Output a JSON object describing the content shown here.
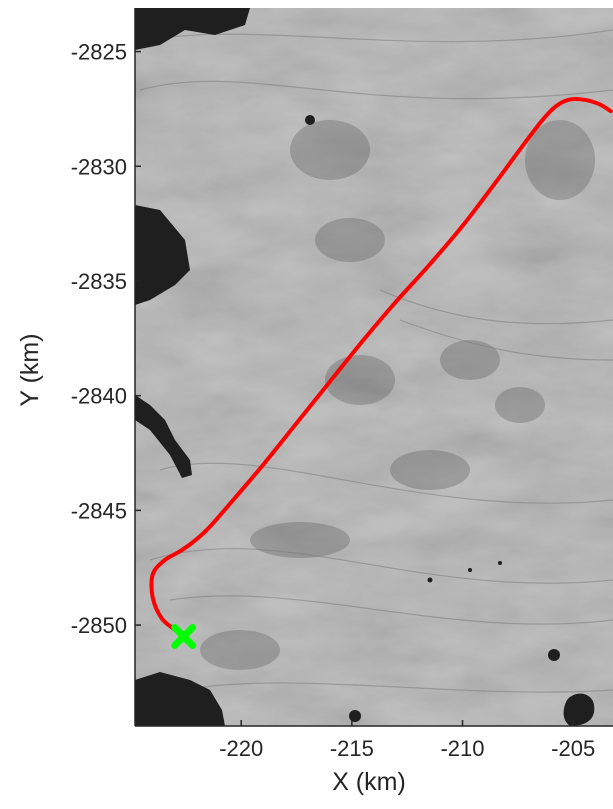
{
  "chart_data": {
    "type": "line",
    "title": "",
    "xlabel": "X (km)",
    "ylabel": "Y (km)",
    "xlim": [
      -224.8,
      -203.2
    ],
    "ylim": [
      -2854.4,
      -2823.1
    ],
    "x_ticks": [
      -220,
      -215,
      -210,
      -205
    ],
    "y_ticks": [
      -2825,
      -2830,
      -2835,
      -2840,
      -2845,
      -2850
    ],
    "x_tick_labels": [
      "-220",
      "-215",
      "-210",
      "-205"
    ],
    "y_tick_labels": [
      "-2825",
      "-2830",
      "-2835",
      "-2840",
      "-2845",
      "-2850"
    ],
    "grid": false,
    "background": "grayscale satellite imagery",
    "series": [
      {
        "color": "#ff0000",
        "x": [
          -203.3,
          -203.8,
          -204.5,
          -205.2,
          -205.8,
          -206.4,
          -207.2,
          -208.5,
          -210.0,
          -211.5,
          -213.0,
          -214.5,
          -216.0,
          -217.5,
          -219.0,
          -220.5,
          -221.5,
          -222.2,
          -222.8,
          -223.5,
          -224.0,
          -224.0,
          -223.6,
          -223.0,
          -222.6
        ],
        "y": [
          -2827.6,
          -2827.3,
          -2827.1,
          -2827.1,
          -2827.4,
          -2828.0,
          -2829.0,
          -2830.7,
          -2832.6,
          -2834.3,
          -2835.9,
          -2837.6,
          -2839.4,
          -2841.2,
          -2843.0,
          -2844.7,
          -2845.8,
          -2846.4,
          -2846.8,
          -2847.2,
          -2847.8,
          -2848.8,
          -2849.7,
          -2850.2,
          -2850.5
        ]
      }
    ],
    "markers": [
      {
        "shape": "x",
        "color": "#00ff00",
        "x": -222.6,
        "y": -2850.5
      }
    ]
  }
}
